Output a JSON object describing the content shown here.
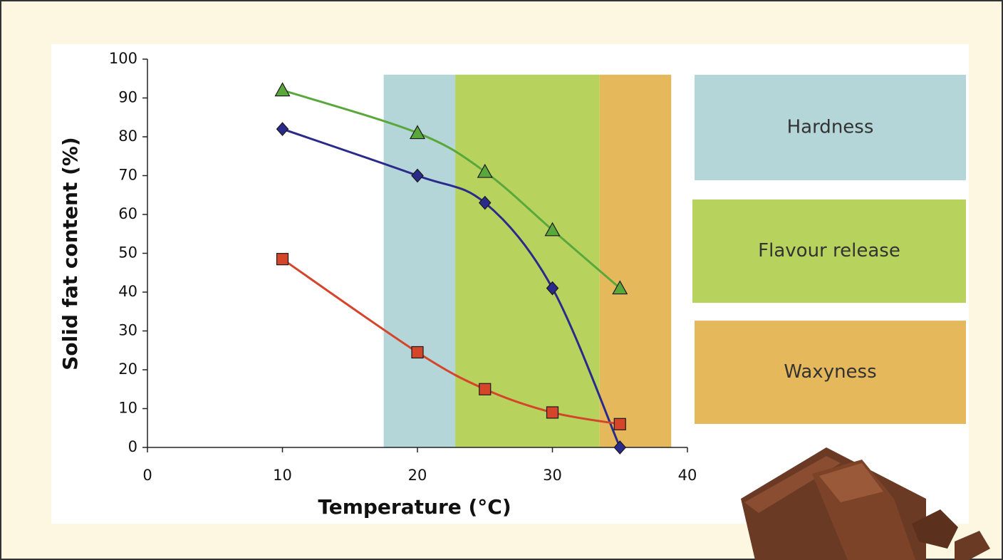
{
  "chart_data": {
    "type": "line",
    "xlabel": "Temperature (°C)",
    "ylabel": "Solid fat content (%)",
    "x": [
      10,
      20,
      25,
      30,
      35
    ],
    "series": [
      {
        "color": "#5aa83c",
        "marker": "triangle",
        "values": [
          92,
          81,
          71,
          56,
          41
        ]
      },
      {
        "color": "#2a2a8a",
        "marker": "diamond",
        "values": [
          82,
          70,
          63,
          41,
          0
        ]
      },
      {
        "color": "#d4452a",
        "marker": "square",
        "values": [
          48.5,
          24.5,
          15,
          9,
          6
        ]
      }
    ],
    "bands": [
      {
        "label": "Hardness",
        "color": "#b5d6d8",
        "x": [
          17.5,
          22.8
        ],
        "y": [
          0,
          96
        ]
      },
      {
        "label": "Flavour release",
        "color": "#b7d35e",
        "x": [
          22.8,
          33.5
        ],
        "y": [
          0,
          96
        ]
      },
      {
        "label": "Waxyness",
        "color": "#e6b85c",
        "x": [
          33.5,
          38.8
        ],
        "y": [
          0,
          96
        ]
      }
    ],
    "xlim": [
      0,
      40
    ],
    "xticks": [
      0,
      10,
      20,
      30,
      40
    ],
    "ylim": [
      0,
      100
    ],
    "yticks": [
      0,
      10,
      20,
      30,
      40,
      50,
      60,
      70,
      80,
      90,
      100
    ]
  }
}
